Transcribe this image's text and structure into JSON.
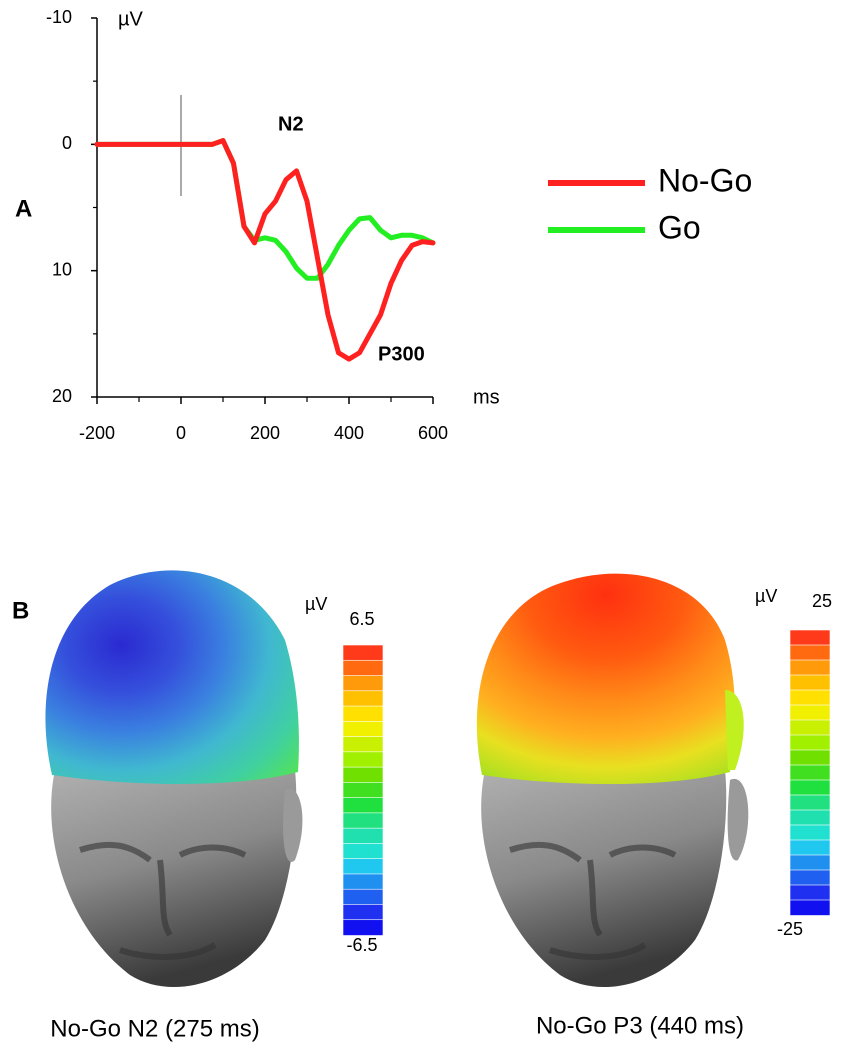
{
  "chart_data": {
    "type": "line",
    "panel_label": "A",
    "y_label": "µV",
    "x_label": "ms",
    "annotations": [
      "N2",
      "P300"
    ],
    "y_inverted": true,
    "xlim": [
      -200,
      600
    ],
    "xticks": [
      -200,
      0,
      200,
      400,
      600
    ],
    "xminor": [
      -100,
      100,
      300,
      500
    ],
    "ylim": [
      -10,
      20
    ],
    "yticks": [
      -10,
      0,
      10,
      20
    ],
    "yminor": [
      -5,
      5,
      15
    ],
    "legend": "right",
    "x": [
      -200,
      -175,
      -150,
      -125,
      -100,
      -75,
      -50,
      -25,
      0,
      25,
      50,
      75,
      100,
      125,
      150,
      175,
      200,
      225,
      250,
      275,
      300,
      325,
      350,
      375,
      400,
      425,
      450,
      475,
      500,
      525,
      550,
      575,
      600
    ],
    "series": [
      {
        "name": "No-Go",
        "color": "#ff2020",
        "values": [
          0,
          0,
          0,
          0,
          0,
          0,
          0,
          0,
          0,
          0,
          0,
          0,
          -0.3,
          1.5,
          6.5,
          7.8,
          5.5,
          4.5,
          2.8,
          2.1,
          4.5,
          9,
          13.5,
          16.5,
          17,
          16.5,
          15,
          13.5,
          11,
          9.2,
          8,
          7.7,
          7.8
        ]
      },
      {
        "name": "Go",
        "color": "#22ee22",
        "values": [
          0,
          0,
          0,
          0,
          0,
          0,
          0,
          0,
          0,
          0,
          0,
          0,
          -0.3,
          1.5,
          6.5,
          7.6,
          7.4,
          7.6,
          8.5,
          9.8,
          10.6,
          10.6,
          9.5,
          8,
          6.8,
          5.9,
          5.8,
          6.8,
          7.4,
          7.2,
          7.2,
          7.4,
          7.8
        ]
      }
    ]
  },
  "panel_b": {
    "label": "B",
    "maps": [
      {
        "unit": "µV",
        "scale_max": 6.5,
        "scale_min": -6.5,
        "caption": "No-Go N2 (275 ms)"
      },
      {
        "unit": "µV",
        "scale_max": 25,
        "scale_min": -25,
        "caption": "No-Go P3 (440 ms)"
      }
    ]
  }
}
